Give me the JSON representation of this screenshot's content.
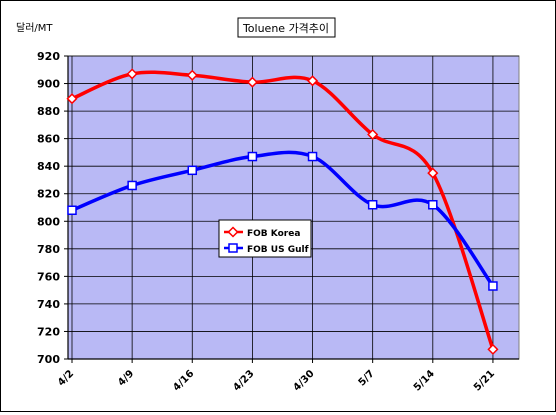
{
  "chart_data": {
    "type": "line",
    "title": "Toluene 가격추이",
    "ylabel": "달러/MT",
    "xlabel": "",
    "categories": [
      "4/2",
      "4/9",
      "4/16",
      "4/23",
      "4/30",
      "5/7",
      "5/14",
      "5/21"
    ],
    "yticks": [
      700,
      720,
      740,
      760,
      780,
      800,
      820,
      840,
      860,
      880,
      900,
      920
    ],
    "ylim": [
      700,
      920
    ],
    "grid": true,
    "legend_position": "center-left",
    "plot_background": "#b9b9f5",
    "series": [
      {
        "name": "FOB Korea",
        "color": "#ff0000",
        "marker": "diamond",
        "values": [
          889,
          907,
          906,
          901,
          902,
          863,
          835,
          707
        ]
      },
      {
        "name": "FOB US Gulf",
        "color": "#0000ff",
        "marker": "square",
        "values": [
          808,
          826,
          837,
          847,
          847,
          812,
          812,
          753
        ]
      }
    ]
  }
}
